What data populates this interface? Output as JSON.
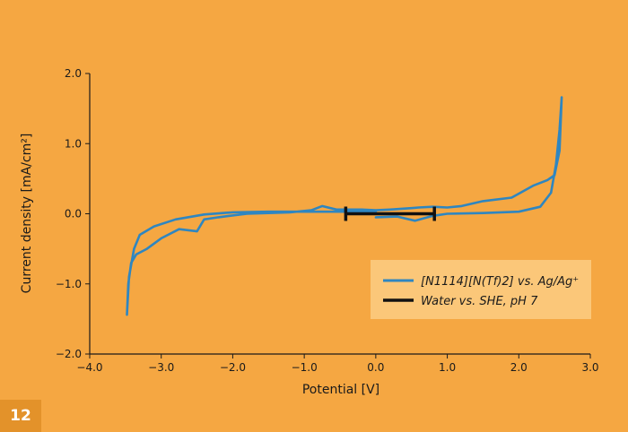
{
  "figure_number": "12",
  "colors": {
    "background": "#f5a742",
    "series_cv": "#2f86c0",
    "series_water": "#111111",
    "legend_bg": "#fbc779",
    "axis": "#1a1a1a"
  },
  "chart_data": {
    "type": "line",
    "title": "",
    "xlabel": "Potential [V]",
    "ylabel": "Current density [mA/cm²]",
    "xlim": [
      -4.0,
      3.0
    ],
    "ylim": [
      -2.0,
      2.0
    ],
    "x_ticks": [
      -4.0,
      -3.0,
      -2.0,
      -1.0,
      0.0,
      1.0,
      2.0,
      3.0
    ],
    "x_tick_labels": [
      "−4.0",
      "−3.0",
      "−2.0",
      "−1.0",
      "0.0",
      "1.0",
      "2.0",
      "3.0"
    ],
    "y_ticks": [
      -2.0,
      -1.0,
      0.0,
      1.0,
      2.0
    ],
    "y_tick_labels": [
      "−2.0",
      "−1.0",
      "0.0",
      "1.0",
      "2.0"
    ],
    "grid": false,
    "legend_position": "bottom-right",
    "series": [
      {
        "name": "[N1114][N(Tf)2] vs. Ag/Ag⁺",
        "style": "line",
        "points": [
          [
            0.0,
            -0.05
          ],
          [
            0.3,
            -0.04
          ],
          [
            0.55,
            -0.1
          ],
          [
            0.8,
            -0.03
          ],
          [
            1.0,
            0.0
          ],
          [
            1.5,
            0.01
          ],
          [
            2.0,
            0.03
          ],
          [
            2.3,
            0.1
          ],
          [
            2.45,
            0.3
          ],
          [
            2.52,
            0.7
          ],
          [
            2.57,
            1.2
          ],
          [
            2.6,
            1.66
          ],
          [
            2.57,
            0.9
          ],
          [
            2.5,
            0.55
          ],
          [
            2.4,
            0.48
          ],
          [
            2.2,
            0.4
          ],
          [
            1.9,
            0.23
          ],
          [
            1.5,
            0.18
          ],
          [
            1.2,
            0.11
          ],
          [
            1.0,
            0.09
          ],
          [
            0.8,
            0.1
          ],
          [
            0.6,
            0.09
          ],
          [
            0.5,
            0.08
          ],
          [
            0.2,
            0.06
          ],
          [
            0.0,
            0.05
          ],
          [
            -0.2,
            0.06
          ],
          [
            -0.55,
            0.06
          ],
          [
            -0.75,
            0.11
          ],
          [
            -0.9,
            0.05
          ],
          [
            -1.2,
            0.02
          ],
          [
            -1.8,
            0.0
          ],
          [
            -2.2,
            -0.05
          ],
          [
            -2.4,
            -0.08
          ],
          [
            -2.5,
            -0.25
          ],
          [
            -2.75,
            -0.22
          ],
          [
            -3.0,
            -0.35
          ],
          [
            -3.2,
            -0.5
          ],
          [
            -3.35,
            -0.58
          ],
          [
            -3.42,
            -0.7
          ],
          [
            -3.46,
            -1.0
          ],
          [
            -3.48,
            -1.44
          ],
          [
            -3.45,
            -0.9
          ],
          [
            -3.38,
            -0.5
          ],
          [
            -3.3,
            -0.3
          ],
          [
            -3.1,
            -0.18
          ],
          [
            -2.8,
            -0.08
          ],
          [
            -2.4,
            -0.01
          ],
          [
            -2.0,
            0.02
          ],
          [
            -1.5,
            0.03
          ],
          [
            -1.0,
            0.03
          ],
          [
            -0.5,
            0.03
          ],
          [
            0.0,
            0.03
          ]
        ]
      },
      {
        "name": "Water vs. SHE, pH 7",
        "style": "error-bar",
        "points": [
          [
            -0.42,
            0.0
          ],
          [
            0.82,
            0.0
          ]
        ]
      }
    ]
  }
}
